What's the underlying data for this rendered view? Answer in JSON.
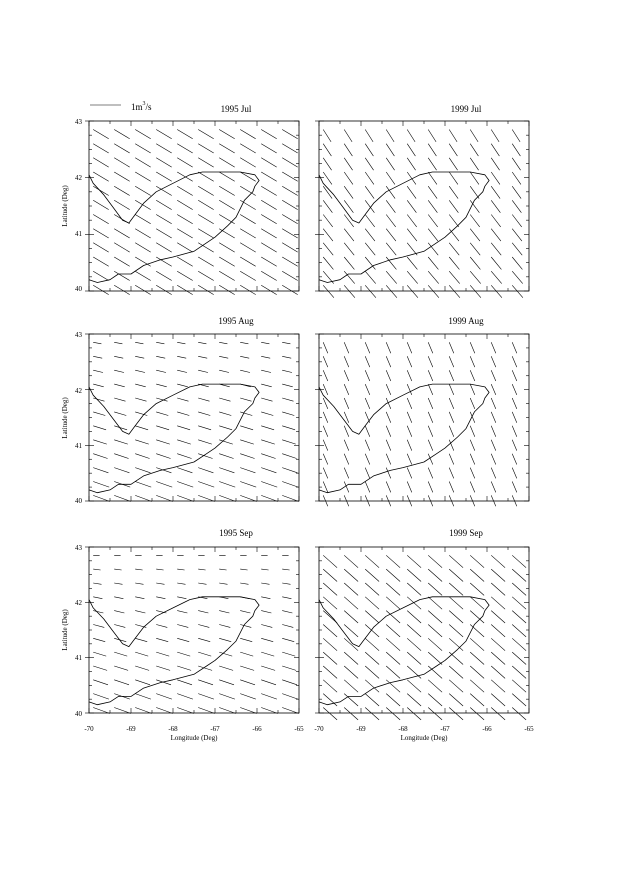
{
  "legend": {
    "label_prefix": "1m",
    "label_exp": "3",
    "label_suffix": "/s"
  },
  "panels": [
    {
      "title": "1995 Jul"
    },
    {
      "title": "1999 Jul"
    },
    {
      "title": "1995 Aug"
    },
    {
      "title": "1999 Aug"
    },
    {
      "title": "1995 Sep"
    },
    {
      "title": "1999 Sep"
    }
  ],
  "axes": {
    "xlabel": "Longitude (Deg)",
    "ylabel": "Latitude (Deg)",
    "xticks": [
      "-70",
      "-69",
      "-68",
      "-67",
      "-66",
      "-65"
    ],
    "yticks": [
      "40",
      "41",
      "42",
      "43"
    ]
  },
  "chart_data": {
    "type": "quiver",
    "xlim": [
      -70,
      -65
    ],
    "ylim": [
      40,
      43
    ],
    "legend_vector": {
      "u": 1,
      "v": 0,
      "label": "1m3/s"
    },
    "grid": {
      "lon_start": -69.9,
      "lon_step": 0.5,
      "lon_count": 10,
      "lat_start": 40.1,
      "lat_step": 0.25,
      "lat_count": 12
    },
    "coastline": [
      [
        -70.0,
        40.2
      ],
      [
        -69.8,
        40.15
      ],
      [
        -69.5,
        40.2
      ],
      [
        -69.3,
        40.3
      ],
      [
        -69.0,
        40.3
      ],
      [
        -68.7,
        40.45
      ],
      [
        -68.3,
        40.55
      ],
      [
        -68.0,
        40.6
      ],
      [
        -67.5,
        40.7
      ],
      [
        -67.2,
        40.85
      ],
      [
        -67.0,
        40.95
      ],
      [
        -66.7,
        41.15
      ],
      [
        -66.5,
        41.3
      ],
      [
        -66.3,
        41.6
      ],
      [
        -66.1,
        41.75
      ],
      [
        -66.05,
        41.85
      ],
      [
        -65.95,
        41.95
      ],
      [
        -66.05,
        42.05
      ],
      [
        -66.4,
        42.1
      ],
      [
        -66.9,
        42.1
      ],
      [
        -67.3,
        42.1
      ],
      [
        -67.6,
        42.05
      ],
      [
        -68.0,
        41.9
      ],
      [
        -68.4,
        41.75
      ],
      [
        -68.7,
        41.55
      ],
      [
        -68.9,
        41.35
      ],
      [
        -69.05,
        41.2
      ],
      [
        -69.2,
        41.25
      ],
      [
        -69.45,
        41.5
      ],
      [
        -69.65,
        41.7
      ],
      [
        -69.9,
        41.9
      ],
      [
        -70.0,
        42.05
      ]
    ],
    "series": [
      {
        "name": "1995 Jul",
        "u_base": 0.5,
        "v_base": -0.3,
        "u_lat": 0.0,
        "v_lat": 0.0
      },
      {
        "name": "1999 Jul",
        "u_base": 0.35,
        "v_base": -0.4,
        "u_lat": -0.05,
        "v_lat": 0.0
      },
      {
        "name": "1995 Aug",
        "u_base": 0.55,
        "v_base": -0.2,
        "u_lat": -0.15,
        "v_lat": 0.08
      },
      {
        "name": "1999 Aug",
        "u_base": 0.15,
        "v_base": -0.35,
        "u_lat": 0.0,
        "v_lat": 0.0
      },
      {
        "name": "1995 Sep",
        "u_base": 0.55,
        "v_base": -0.2,
        "u_lat": -0.18,
        "v_lat": 0.1
      },
      {
        "name": "1999 Sep",
        "u_base": 0.45,
        "v_base": -0.4,
        "u_lat": 0.0,
        "v_lat": 0.0
      }
    ]
  }
}
